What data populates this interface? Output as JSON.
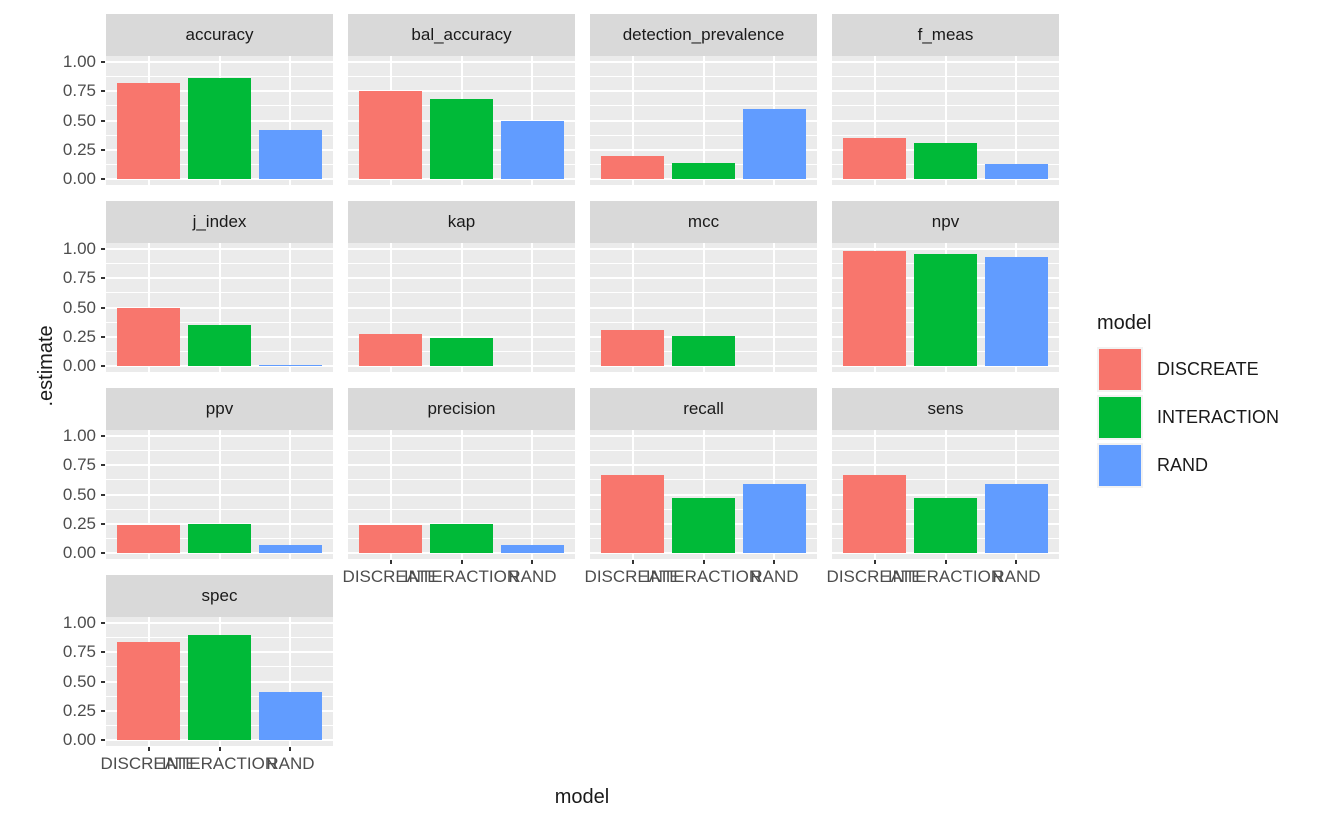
{
  "chart_data": {
    "type": "bar",
    "title": "",
    "xlabel": "model",
    "ylabel": ".estimate",
    "ylim": [
      0,
      1.05
    ],
    "grid": true,
    "y_tick_labels": [
      "1.00",
      "0.75",
      "0.50",
      "0.25",
      "0.00"
    ],
    "y_tick_values": [
      1.0,
      0.75,
      0.5,
      0.25,
      0.0
    ],
    "y_minor_values": [
      0.875,
      0.625,
      0.375,
      0.125
    ],
    "categories": [
      "DISCREATE",
      "INTERACTION",
      "RAND"
    ],
    "series_colors": [
      "#F8766D",
      "#00BA38",
      "#619CFF"
    ],
    "facets": [
      {
        "label": "accuracy",
        "values": [
          0.82,
          0.86,
          0.42
        ]
      },
      {
        "label": "bal_accuracy",
        "values": [
          0.75,
          0.68,
          0.5
        ]
      },
      {
        "label": "detection_prevalence",
        "values": [
          0.2,
          0.14,
          0.6
        ]
      },
      {
        "label": "f_meas",
        "values": [
          0.35,
          0.31,
          0.13
        ]
      },
      {
        "label": "j_index",
        "values": [
          0.5,
          0.35,
          0.005
        ]
      },
      {
        "label": "kap",
        "values": [
          0.27,
          0.24,
          0
        ]
      },
      {
        "label": "mcc",
        "values": [
          0.31,
          0.26,
          0
        ]
      },
      {
        "label": "npv",
        "values": [
          0.98,
          0.96,
          0.93
        ]
      },
      {
        "label": "ppv",
        "values": [
          0.24,
          0.25,
          0.07
        ]
      },
      {
        "label": "precision",
        "values": [
          0.24,
          0.25,
          0.07
        ]
      },
      {
        "label": "recall",
        "values": [
          0.67,
          0.47,
          0.59
        ]
      },
      {
        "label": "sens",
        "values": [
          0.67,
          0.47,
          0.59
        ]
      },
      {
        "label": "spec",
        "values": [
          0.84,
          0.9,
          0.41
        ]
      }
    ],
    "legend": {
      "title": "model",
      "position": "right",
      "items": [
        {
          "label": "DISCREATE",
          "color": "#F8766D"
        },
        {
          "label": "INTERACTION",
          "color": "#00BA38"
        },
        {
          "label": "RAND",
          "color": "#619CFF"
        }
      ]
    },
    "theme_colors": {
      "strip_bg": "#D9D9D9",
      "panel_bg": "#EBEBEB",
      "grid": "#FFFFFF",
      "tick_text": "#4D4D4D",
      "text": "#1A1A1A"
    }
  }
}
